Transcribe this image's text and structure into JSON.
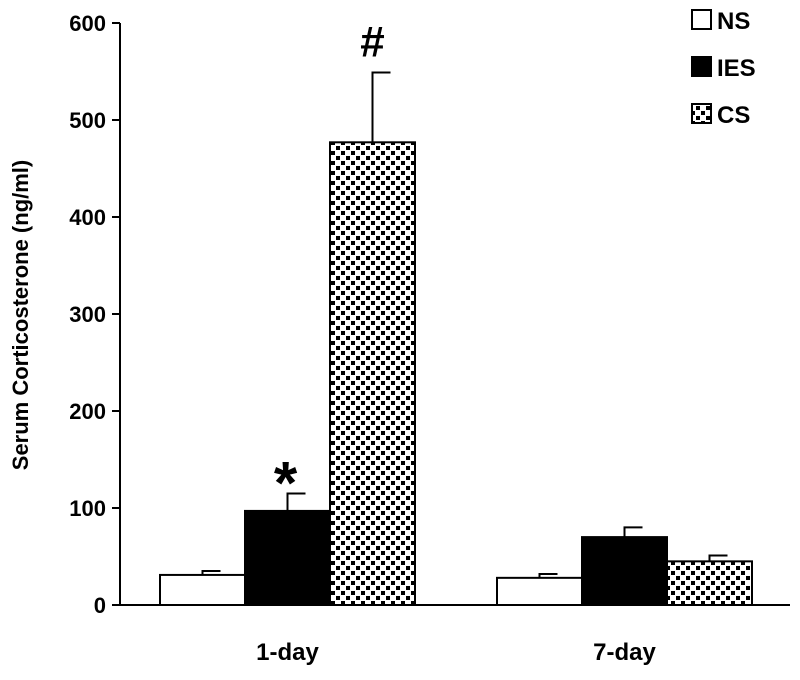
{
  "chart_data": {
    "type": "bar",
    "categories": [
      "1-day",
      "7-day"
    ],
    "series": [
      {
        "name": "NS",
        "values": [
          31,
          28
        ],
        "errors": [
          4,
          4
        ],
        "fill": "#ffffff"
      },
      {
        "name": "IES",
        "values": [
          97,
          70
        ],
        "errors": [
          18,
          10
        ],
        "fill": "#000000"
      },
      {
        "name": "CS",
        "values": [
          477,
          45
        ],
        "errors": [
          72,
          6
        ],
        "fill": "pattern-dots"
      }
    ],
    "title": "",
    "xlabel": "",
    "ylabel": "Serum Corticosterone (ng/ml)",
    "ylim": [
      0,
      600
    ],
    "yticks": [
      "0",
      "100",
      "200",
      "300",
      "400",
      "500",
      "600"
    ],
    "grid": false,
    "legend": "top-right",
    "annotations": [
      {
        "text": "*",
        "category": "1-day",
        "series": "IES"
      },
      {
        "text": "#",
        "category": "1-day",
        "series": "CS"
      }
    ]
  }
}
